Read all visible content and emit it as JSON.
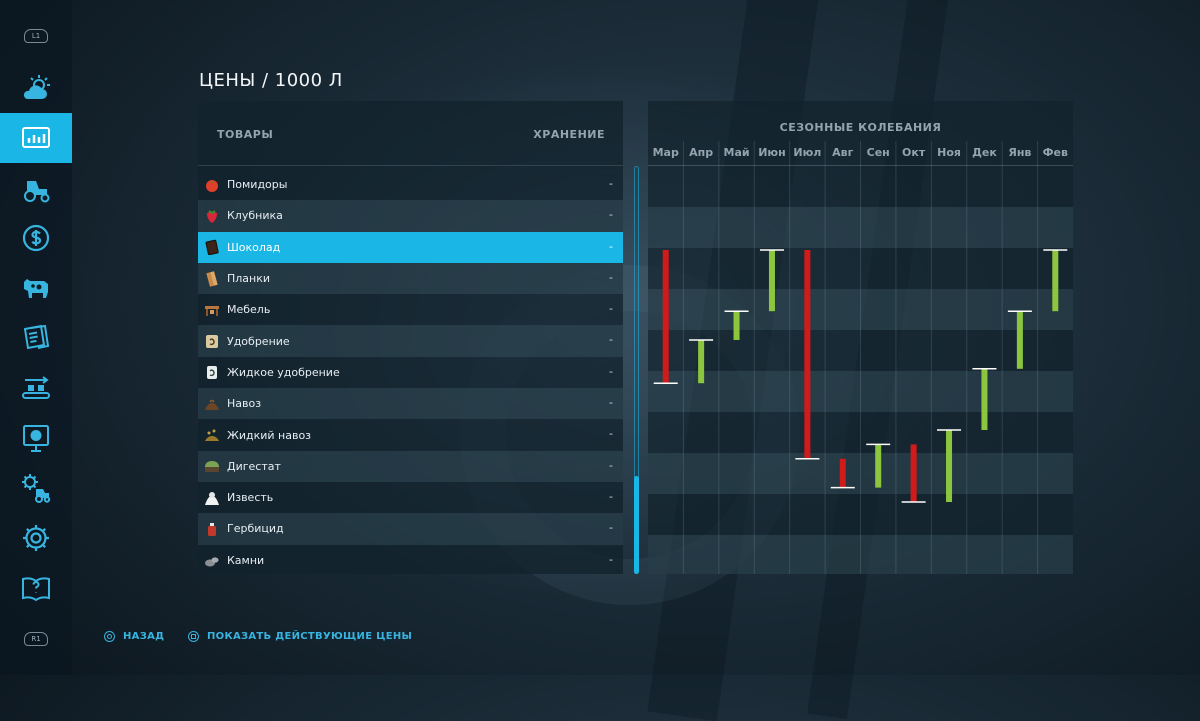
{
  "page": {
    "title": "ЦЕНЫ / 1000 Л"
  },
  "sidebar": {
    "top_badge": "L1",
    "bottom_badge": "R1",
    "items": [
      {
        "icon": "weather-icon",
        "active": false
      },
      {
        "icon": "prices-chart-icon",
        "active": true
      },
      {
        "icon": "tractor-icon",
        "active": false
      },
      {
        "icon": "finance-dollar-icon",
        "active": false
      },
      {
        "icon": "cow-icon",
        "active": false
      },
      {
        "icon": "contracts-icon",
        "active": false
      },
      {
        "icon": "production-icon",
        "active": false
      },
      {
        "icon": "statistics-icon",
        "active": false
      },
      {
        "icon": "garage-settings-icon",
        "active": false
      },
      {
        "icon": "gear-icon",
        "active": false
      },
      {
        "icon": "help-book-icon",
        "active": false
      }
    ]
  },
  "goods_table": {
    "col_goods": "ТОВАРЫ",
    "col_storage": "ХРАНЕНИЕ",
    "rows": [
      {
        "name": "Помидоры",
        "storage": "-",
        "icon": "tomato-icon"
      },
      {
        "name": "Клубника",
        "storage": "-",
        "icon": "strawberry-icon"
      },
      {
        "name": "Шоколад",
        "storage": "-",
        "icon": "chocolate-icon",
        "selected": true
      },
      {
        "name": "Планки",
        "storage": "-",
        "icon": "planks-icon"
      },
      {
        "name": "Мебель",
        "storage": "-",
        "icon": "furniture-icon"
      },
      {
        "name": "Удобрение",
        "storage": "-",
        "icon": "fertilizer-icon"
      },
      {
        "name": "Жидкое удобрение",
        "storage": "-",
        "icon": "liquid-fertilizer-icon"
      },
      {
        "name": "Навоз",
        "storage": "-",
        "icon": "manure-icon"
      },
      {
        "name": "Жидкий навоз",
        "storage": "-",
        "icon": "slurry-icon"
      },
      {
        "name": "Дигестат",
        "storage": "-",
        "icon": "digestate-icon"
      },
      {
        "name": "Известь",
        "storage": "-",
        "icon": "lime-icon"
      },
      {
        "name": "Гербицид",
        "storage": "-",
        "icon": "herbicide-icon"
      },
      {
        "name": "Камни",
        "storage": "-",
        "icon": "stones-icon"
      }
    ]
  },
  "seasonal": {
    "title": "СЕЗОННЫЕ КОЛЕБАНИЯ",
    "colors": {
      "up": "#8cc63f",
      "down": "#d11a1a",
      "cap": "#ffffff"
    }
  },
  "chart_data": {
    "type": "bar",
    "categories": [
      "Мар",
      "Апр",
      "Май",
      "Июн",
      "Июл",
      "Авг",
      "Сен",
      "Окт",
      "Ноя",
      "Дек",
      "Янв",
      "Фев"
    ],
    "ylim": [
      0,
      100
    ],
    "grid": true,
    "bars": [
      {
        "month": "Мар",
        "from": 85,
        "to": 48,
        "direction": "down"
      },
      {
        "month": "Апр",
        "from": 48,
        "to": 60,
        "direction": "up"
      },
      {
        "month": "Май",
        "from": 60,
        "to": 68,
        "direction": "up"
      },
      {
        "month": "Июн",
        "from": 68,
        "to": 85,
        "direction": "up"
      },
      {
        "month": "Июл",
        "from": 85,
        "to": 27,
        "direction": "down"
      },
      {
        "month": "Авг",
        "from": 27,
        "to": 19,
        "direction": "down"
      },
      {
        "month": "Сен",
        "from": 19,
        "to": 31,
        "direction": "up"
      },
      {
        "month": "Окт",
        "from": 31,
        "to": 15,
        "direction": "down"
      },
      {
        "month": "Ноя",
        "from": 15,
        "to": 35,
        "direction": "up"
      },
      {
        "month": "Дек",
        "from": 35,
        "to": 52,
        "direction": "up"
      },
      {
        "month": "Янв",
        "from": 52,
        "to": 68,
        "direction": "up"
      },
      {
        "month": "Фев",
        "from": 68,
        "to": 85,
        "direction": "up"
      }
    ]
  },
  "footer": {
    "back": "НАЗАД",
    "show_prices": "ПОКАЗАТЬ ДЕЙСТВУЮЩИЕ ЦЕНЫ"
  }
}
